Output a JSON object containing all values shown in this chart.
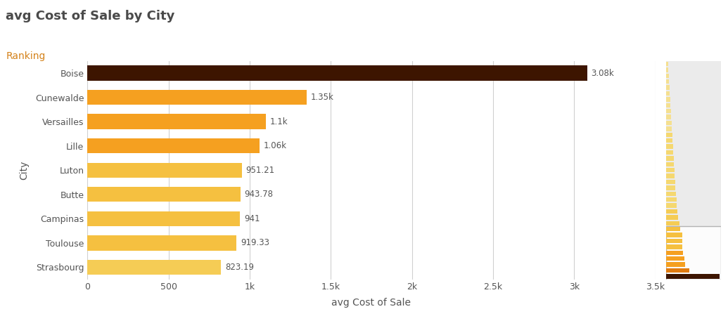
{
  "title": "avg Cost of Sale by City",
  "subtitle": "Ranking",
  "xlabel": "avg Cost of Sale",
  "ylabel": "City",
  "categories": [
    "Boise",
    "Cunewalde",
    "Versailles",
    "Lille",
    "Luton",
    "Butte",
    "Campinas",
    "Toulouse",
    "Strasbourg"
  ],
  "values": [
    3080,
    1350,
    1100,
    1060,
    951.21,
    943.78,
    941,
    919.33,
    823.19
  ],
  "labels": [
    "3.08k",
    "1.35k",
    "1.1k",
    "1.06k",
    "951.21",
    "943.78",
    "941",
    "919.33",
    "823.19"
  ],
  "bar_colors": [
    "#3d1500",
    "#f5a020",
    "#f5a020",
    "#f5a020",
    "#f5c040",
    "#f5c040",
    "#f5c040",
    "#f5c040",
    "#f5cc55"
  ],
  "title_color": "#4a4a4a",
  "subtitle_color": "#d4821a",
  "label_color": "#555555",
  "xlim": [
    0,
    3500
  ],
  "xtick_values": [
    0,
    500,
    1000,
    1500,
    2000,
    2500,
    3000,
    3500
  ],
  "xtick_labels": [
    "0",
    "500",
    "1k",
    "1.5k",
    "2k",
    "2.5k",
    "3k",
    "3.5k"
  ],
  "background_color": "#ebebeb",
  "main_bg_color": "#ffffff",
  "grid_color": "#d0d0d0",
  "mini_chart_colors": [
    "#3d1500",
    "#e07b10",
    "#f5a020",
    "#f5a020",
    "#f5a020",
    "#f5c040",
    "#f5c040",
    "#f5c040",
    "#f5c040",
    "#f5cc55",
    "#f5cc55",
    "#f5cc55",
    "#f5d870",
    "#f5d870",
    "#f5d870",
    "#f5d870",
    "#f5d870",
    "#f5d870",
    "#f5d870",
    "#f5d870",
    "#f5d870",
    "#f5d870",
    "#f5d870",
    "#f5d870",
    "#f5d870",
    "#f5e090",
    "#f5e090",
    "#f5e090",
    "#f5e090",
    "#f5e090",
    "#f5e090",
    "#f5e090",
    "#f5e090",
    "#f5e090",
    "#f5e090",
    "#f5e090",
    "#f5e090"
  ],
  "mini_chart_values": [
    3080,
    1350,
    1100,
    1060,
    951,
    944,
    941,
    919,
    823,
    750,
    700,
    660,
    620,
    590,
    560,
    530,
    510,
    490,
    470,
    450,
    430,
    410,
    390,
    370,
    350,
    330,
    310,
    290,
    270,
    250,
    230,
    210,
    190,
    170,
    150,
    130,
    110
  ],
  "mini_highlight_count": 9
}
